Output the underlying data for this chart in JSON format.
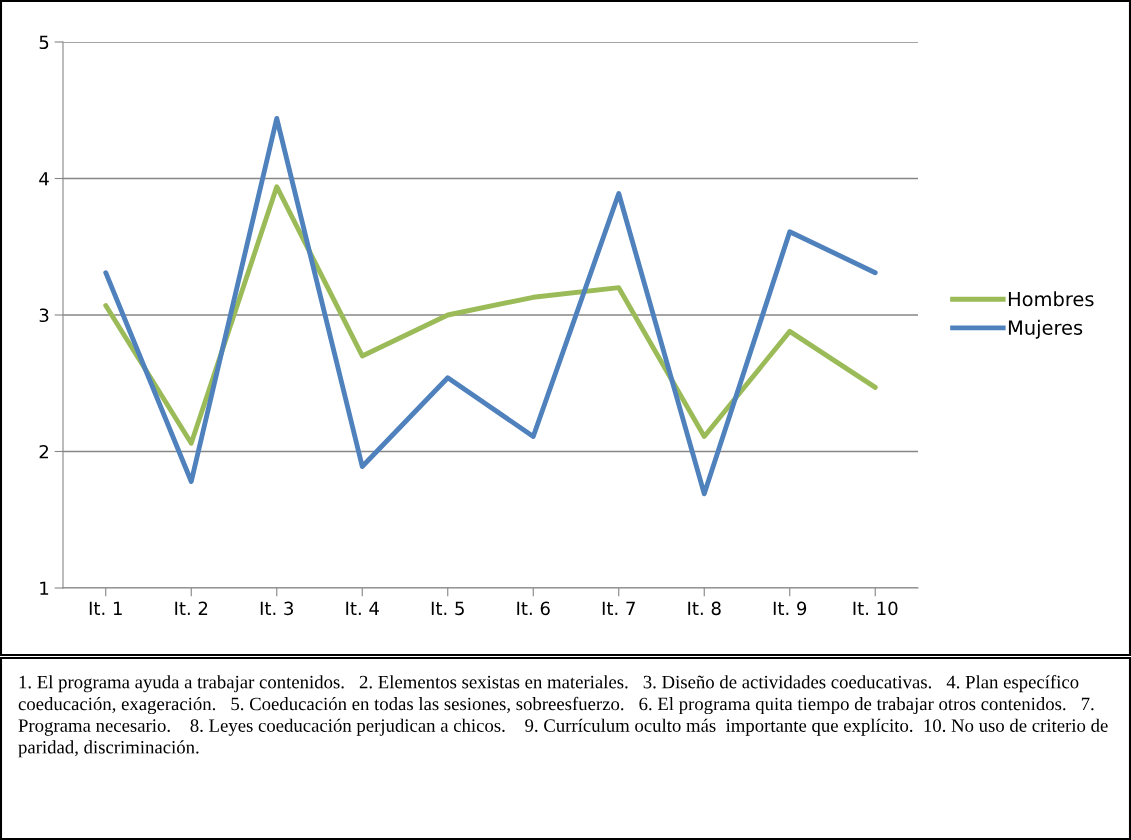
{
  "chart_data": {
    "type": "line",
    "categories": [
      "It. 1",
      "It. 2",
      "It. 3",
      "It. 4",
      "It. 5",
      "It. 6",
      "It. 7",
      "It. 8",
      "It. 9",
      "It. 10"
    ],
    "series": [
      {
        "name": "Hombres",
        "color": "#9bbb59",
        "values": [
          3.07,
          2.06,
          3.94,
          2.7,
          3.0,
          3.13,
          3.2,
          2.11,
          2.88,
          2.47
        ]
      },
      {
        "name": "Mujeres",
        "color": "#4f81bd",
        "values": [
          3.31,
          1.78,
          4.44,
          1.89,
          2.54,
          2.11,
          3.89,
          1.69,
          3.61,
          3.31
        ]
      }
    ],
    "ylim": [
      1,
      5
    ],
    "yticks": [
      1,
      2,
      3,
      4,
      5
    ],
    "grid": "y",
    "legend": "right",
    "marker": "none",
    "line_style": "solid",
    "annotations": [
      "1. El programa ayuda a trabajar contenidos.   2. Elementos sexistas en materiales.   3. Diseño de actividades coeducativas.   4. Plan específico coeducación, exageración.   5. Coeducación en todas las sesiones, sobreesfuerzo.   6. El programa quita tiempo de trabajar otros contenidos.   7. Programa necesario.    8. Leyes coeducación perjudican a chicos.    9. Currículum oculto más  importante que explícito.  10. No uso de criterio de paridad, discriminación."
    ]
  }
}
